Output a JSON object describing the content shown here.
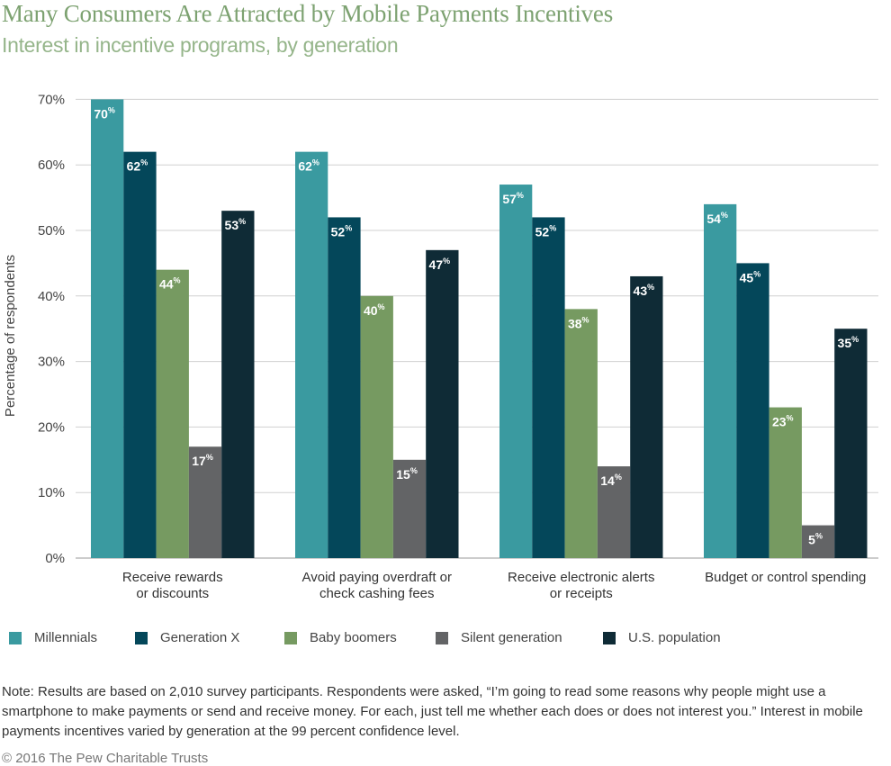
{
  "header": {
    "title": "Many Consumers Are Attracted by Mobile Payments Incentives",
    "subtitle": "Interest in incentive programs, by generation"
  },
  "chart_data": {
    "type": "bar",
    "title": "Many Consumers Are Attracted by Mobile Payments Incentives",
    "subtitle": "Interest in incentive programs, by generation",
    "xlabel": "",
    "ylabel": "Percentage of respondents",
    "ylim": [
      0,
      70
    ],
    "yticks": [
      0,
      10,
      20,
      30,
      40,
      50,
      60,
      70
    ],
    "ytick_labels": [
      "0%",
      "10%",
      "20%",
      "30%",
      "40%",
      "50%",
      "60%",
      "70%"
    ],
    "grid": true,
    "legend_position": "bottom",
    "value_suffix": "%",
    "categories": [
      [
        "Receive rewards",
        "or discounts"
      ],
      [
        "Avoid paying overdraft or",
        "check cashing fees"
      ],
      [
        "Receive electronic alerts",
        "or receipts"
      ],
      [
        "Budget or control spending"
      ]
    ],
    "series": [
      {
        "name": "Millennials",
        "color": "#3a9aa0",
        "values": [
          70,
          62,
          57,
          54
        ]
      },
      {
        "name": "Generation X",
        "color": "#04475a",
        "values": [
          62,
          52,
          52,
          45
        ]
      },
      {
        "name": "Baby boomers",
        "color": "#769a61",
        "values": [
          44,
          40,
          38,
          23
        ]
      },
      {
        "name": "Silent generation",
        "color": "#636466",
        "values": [
          17,
          15,
          14,
          5
        ]
      },
      {
        "name": "U.S. population",
        "color": "#0f2b36",
        "values": [
          53,
          47,
          43,
          35
        ]
      }
    ]
  },
  "note": "Note: Results are based on 2,010 survey participants. Respondents were asked, “I’m going to read some reasons why people might use a smartphone to make payments or send and receive money. For each, just tell me whether each does or does not interest you.” Interest in mobile payments incentives varied by generation at the 99 percent confidence level.",
  "credit": "© 2016 The Pew Charitable Trusts"
}
